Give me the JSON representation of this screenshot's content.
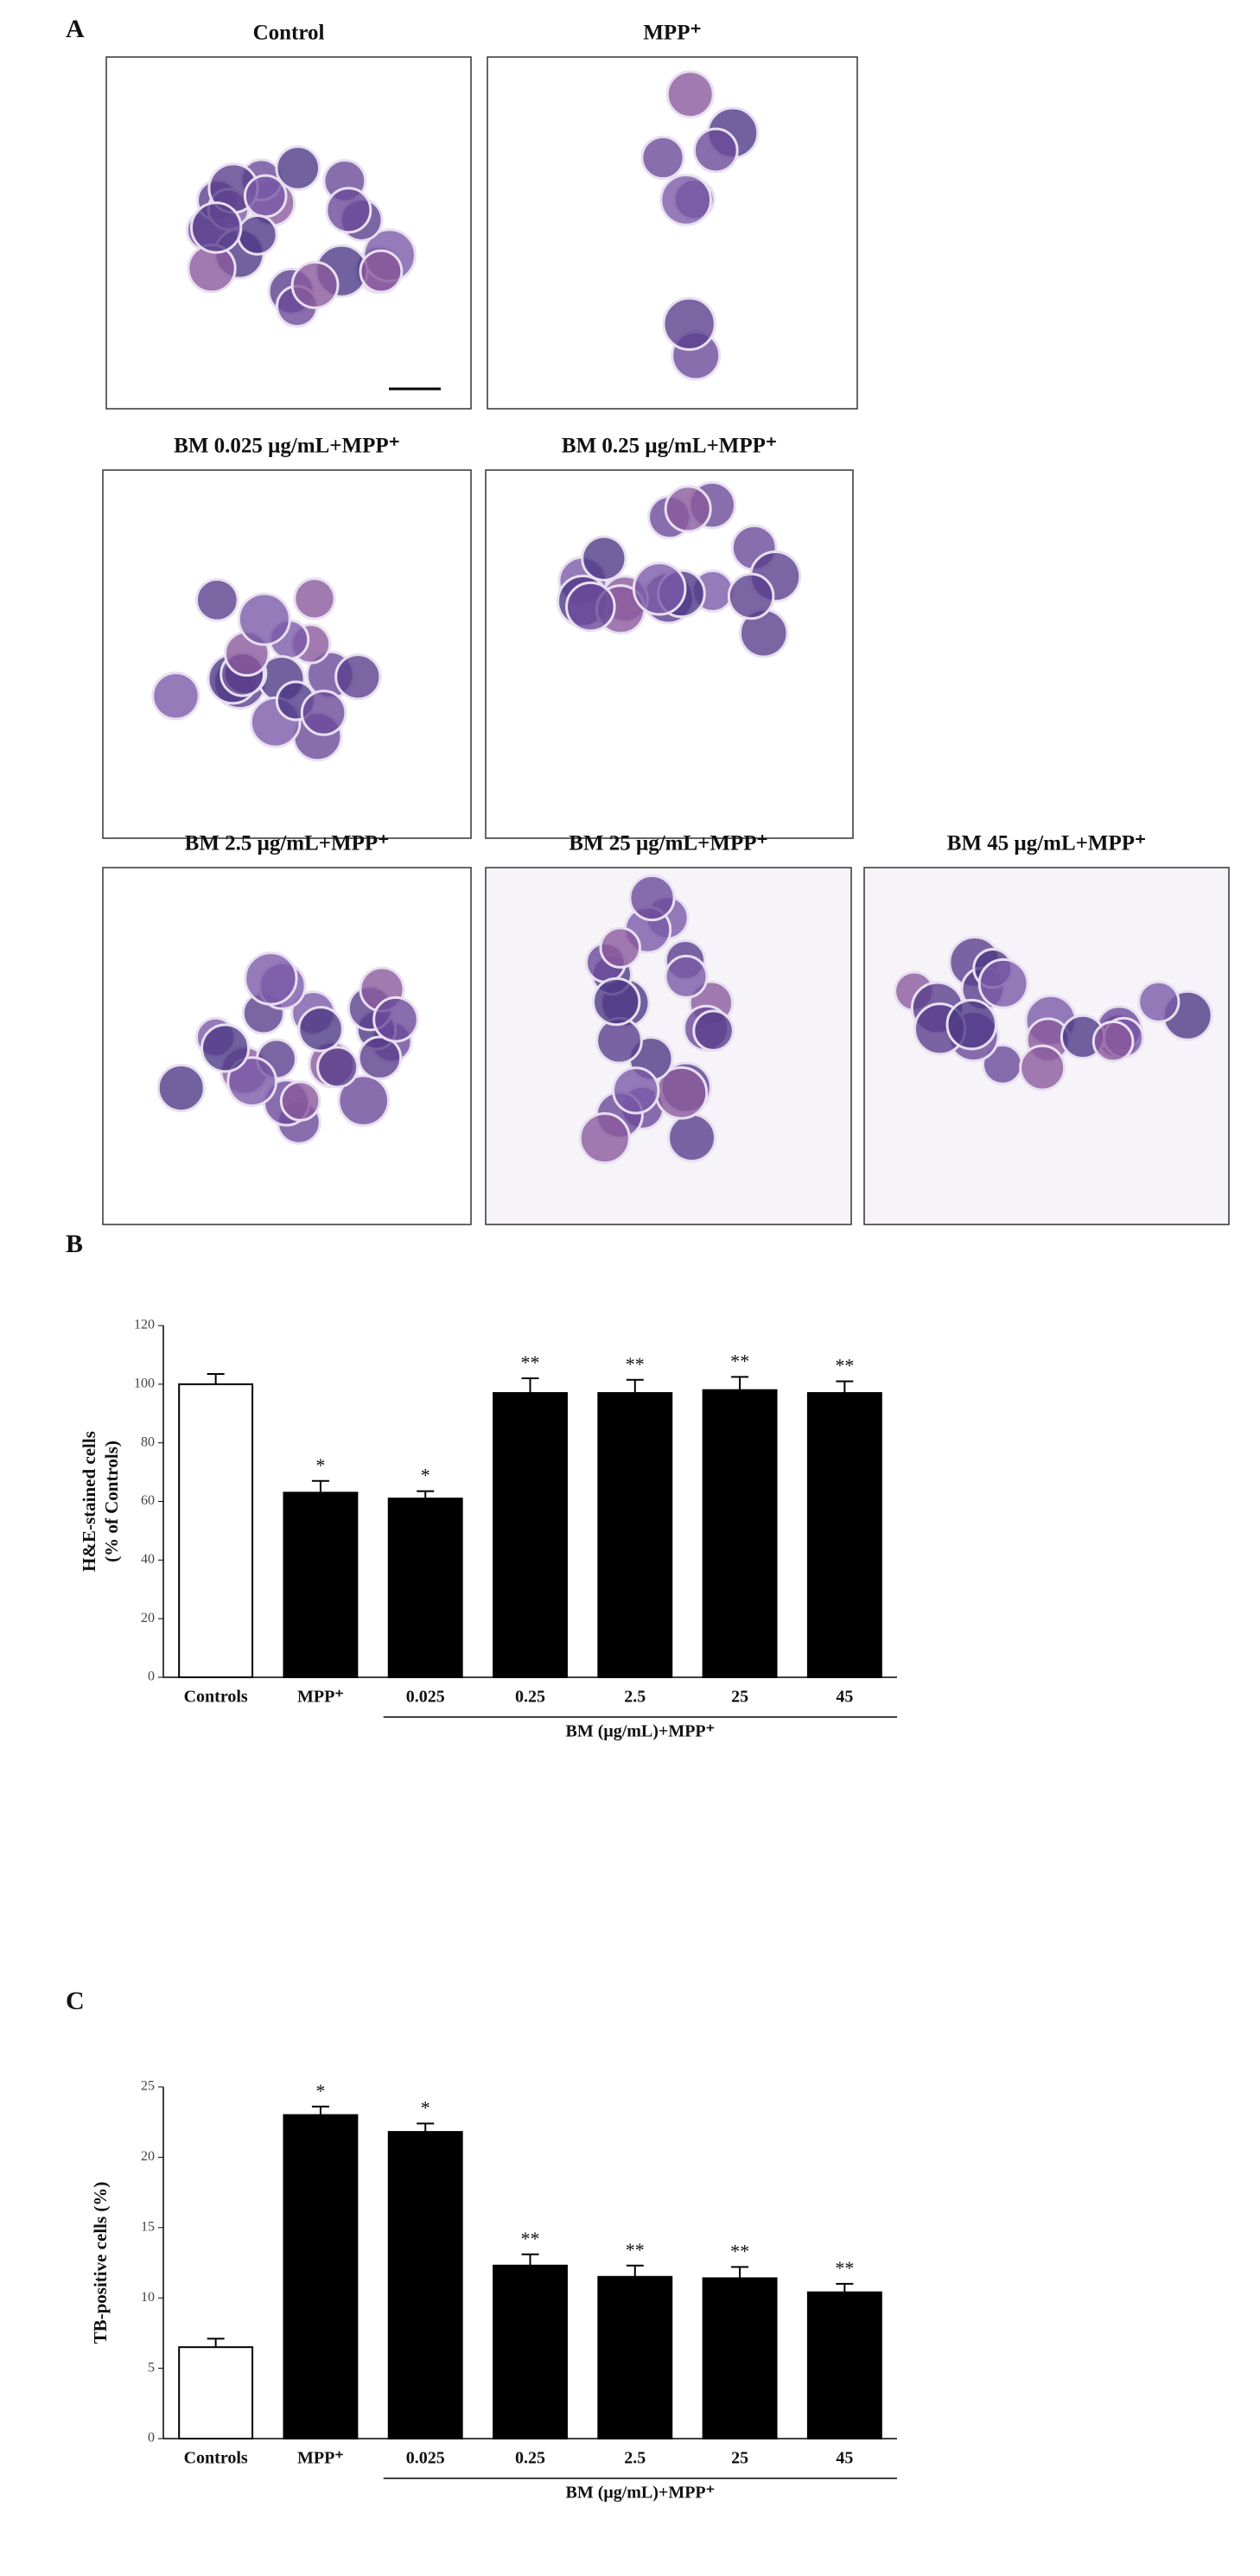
{
  "micrographs": {
    "label": "A",
    "images": [
      {
        "title": "Control"
      },
      {
        "title": "MPP⁺"
      },
      {
        "title": "BM 0.025 μg/mL+MPP⁺"
      },
      {
        "title": "BM 0.25 μg/mL+MPP⁺"
      },
      {
        "title": "BM 2.5 μg/mL+MPP⁺"
      },
      {
        "title": "BM 25 μg/mL+MPP⁺"
      },
      {
        "title": "BM 45 μg/mL+MPP⁺"
      }
    ]
  },
  "chart_data": [
    {
      "type": "bar",
      "label": "B",
      "ylabel": [
        "H&E-stained cells",
        "(% of Controls)"
      ],
      "categories": [
        "Controls",
        "MPP⁺",
        "0.025",
        "0.25",
        "2.5",
        "25",
        "45"
      ],
      "values": [
        100,
        63,
        61,
        97,
        97,
        98,
        97
      ],
      "errors": [
        3.5,
        4,
        2.5,
        5,
        4.5,
        4.5,
        4
      ],
      "annotations": [
        null,
        "*",
        "*",
        "**",
        "**",
        "**",
        "**"
      ],
      "colors": [
        "#ffffff",
        "#000000",
        "#000000",
        "#000000",
        "#000000",
        "#000000",
        "#000000"
      ],
      "group_label": "BM (μg/mL)+MPP⁺",
      "ylim": [
        0,
        120
      ],
      "yticks": [
        0,
        20,
        40,
        60,
        80,
        100,
        120
      ]
    },
    {
      "type": "bar",
      "label": "C",
      "ylabel": [
        "TB-positive cells (%)"
      ],
      "categories": [
        "Controls",
        "MPP⁺",
        "0.025",
        "0.25",
        "2.5",
        "25",
        "45"
      ],
      "values": [
        6.5,
        23,
        21.8,
        12.3,
        11.5,
        11.4,
        10.4
      ],
      "errors": [
        0.6,
        0.6,
        0.6,
        0.8,
        0.8,
        0.8,
        0.6
      ],
      "annotations": [
        null,
        "*",
        "*",
        "**",
        "**",
        "**",
        "**"
      ],
      "colors": [
        "#ffffff",
        "#000000",
        "#000000",
        "#000000",
        "#000000",
        "#000000",
        "#000000"
      ],
      "group_label": "BM (μg/mL)+MPP⁺",
      "ylim": [
        0,
        25
      ],
      "yticks": [
        0,
        5,
        10,
        15,
        20,
        25
      ]
    }
  ]
}
